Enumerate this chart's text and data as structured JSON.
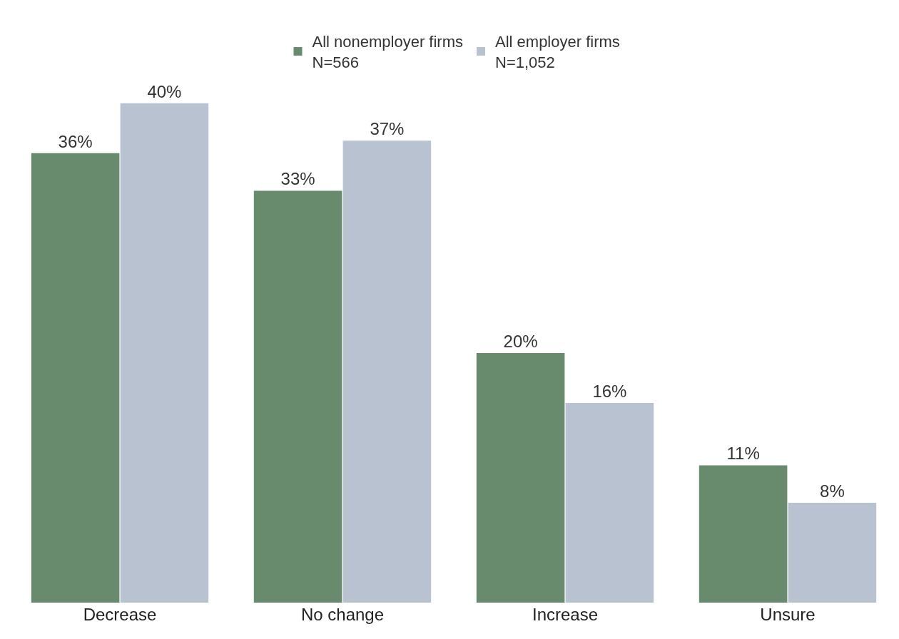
{
  "chart_data": {
    "type": "bar",
    "categories": [
      "Decrease",
      "No change",
      "Increase",
      "Unsure"
    ],
    "series": [
      {
        "name": "All nonemployer firms\nN=566",
        "color": "#678b6c",
        "values": [
          36,
          33,
          20,
          11
        ],
        "value_labels": [
          "36%",
          "33%",
          "20%",
          "11%"
        ]
      },
      {
        "name": "All employer firms\nN=1,052",
        "color": "#b8c2d0",
        "values": [
          40,
          37,
          16,
          8
        ],
        "value_labels": [
          "40%",
          "37%",
          "16%",
          "8%"
        ]
      }
    ],
    "tick_labels": "x",
    "legend": "top"
  }
}
